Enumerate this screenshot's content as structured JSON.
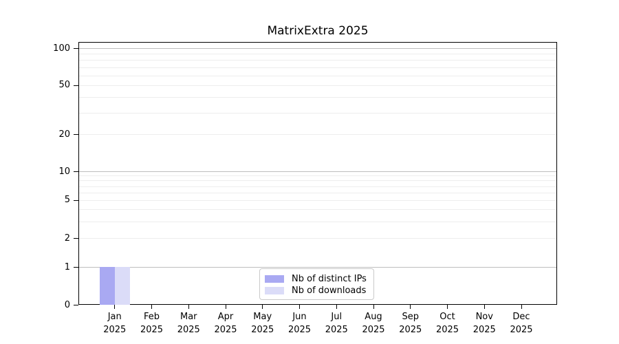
{
  "title": "MatrixExtra 2025",
  "chart_data": {
    "type": "bar",
    "title": "MatrixExtra 2025",
    "categories": [
      "Jan 2025",
      "Feb 2025",
      "Mar 2025",
      "Apr 2025",
      "May 2025",
      "Jun 2025",
      "Jul 2025",
      "Aug 2025",
      "Sep 2025",
      "Oct 2025",
      "Nov 2025",
      "Dec 2025"
    ],
    "month_names": [
      "Jan",
      "Feb",
      "Mar",
      "Apr",
      "May",
      "Jun",
      "Jul",
      "Aug",
      "Sep",
      "Oct",
      "Nov",
      "Dec"
    ],
    "year_label": "2025",
    "series": [
      {
        "name": "Nb of distinct IPs",
        "color": "#a9a9f2",
        "values": [
          1,
          0,
          0,
          0,
          0,
          0,
          0,
          0,
          0,
          0,
          0,
          0
        ]
      },
      {
        "name": "Nb of downloads",
        "color": "#dbdcf8",
        "values": [
          1,
          0,
          0,
          0,
          0,
          0,
          0,
          0,
          0,
          0,
          0,
          0
        ]
      }
    ],
    "y_axis": {
      "scale": "log above 1, linear between 0 and 1",
      "ylim": [
        0,
        100
      ],
      "labeled_ticks": [
        100,
        50,
        20,
        10,
        5,
        2,
        1,
        0
      ],
      "major_grid_values": [
        100,
        10,
        1
      ],
      "minor_grid_values": [
        90,
        80,
        70,
        60,
        50,
        40,
        30,
        20,
        9,
        8,
        7,
        6,
        5,
        4,
        3,
        2
      ]
    },
    "grid": "horizontal gridlines on",
    "legend_position": "inside axes, bottom center"
  },
  "legend": {
    "items": [
      {
        "label": "Nb of distinct IPs",
        "color": "#a9a9f2"
      },
      {
        "label": "Nb of downloads",
        "color": "#dbdcf8"
      }
    ]
  },
  "colors": {
    "bar_distinct_ips": "#a9a9f2",
    "bar_downloads": "#dbdcf8",
    "grid_major": "#bdbdbd",
    "grid_minor": "#ededed",
    "spine": "#000000",
    "text": "#000000",
    "legend_border": "#c9c9c9",
    "background": "#ffffff"
  }
}
